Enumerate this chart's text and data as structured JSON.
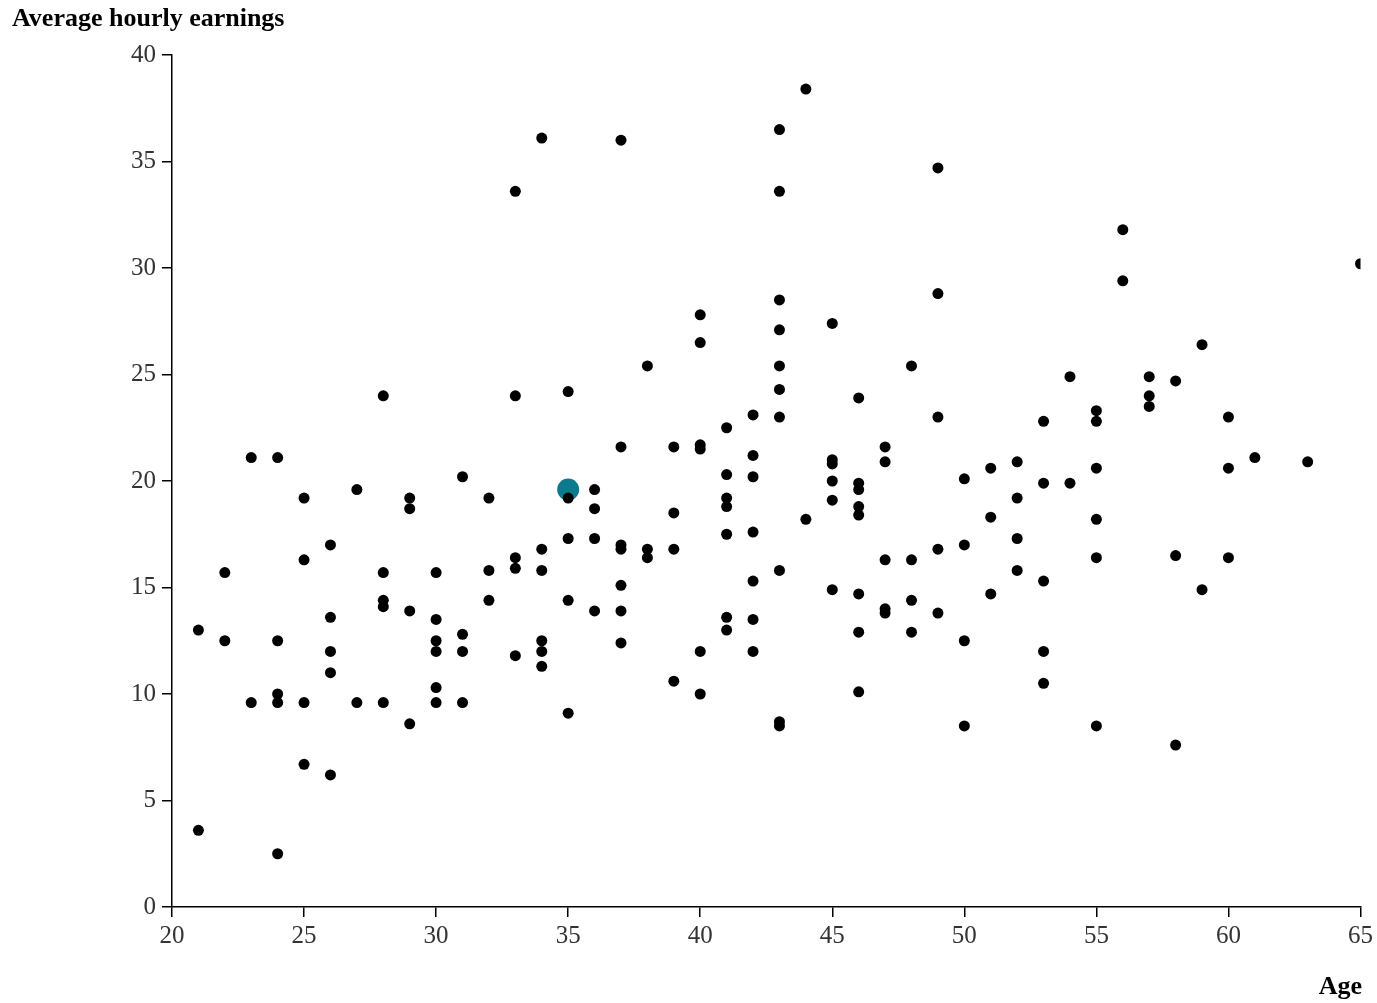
{
  "chart_data": {
    "type": "scatter",
    "ylabel": "Average hourly earnings",
    "xlabel": "Age",
    "xlim": [
      20,
      65
    ],
    "xticks": [
      20,
      25,
      30,
      35,
      40,
      45,
      50,
      55,
      60,
      65
    ],
    "ylim": [
      0,
      40
    ],
    "yticks": [
      0,
      5,
      10,
      15,
      20,
      25,
      30,
      35,
      40
    ],
    "grid": false,
    "legend": false,
    "marker": "circle",
    "series": [
      {
        "color": "#000000",
        "x": [
          21,
          21,
          22,
          22,
          23,
          23,
          24,
          24,
          24,
          24,
          24,
          25,
          25,
          25,
          25,
          26,
          26,
          26,
          26,
          26,
          27,
          27,
          28,
          28,
          28,
          28,
          28,
          29,
          29,
          29,
          29,
          30,
          30,
          30,
          30,
          30,
          30,
          31,
          31,
          31,
          31,
          32,
          32,
          32,
          33,
          33,
          33,
          33,
          33,
          34,
          34,
          34,
          34,
          34,
          34,
          35,
          35,
          35,
          35,
          35,
          36,
          36,
          36,
          36,
          37,
          37,
          37,
          37,
          37,
          37,
          37,
          38,
          38,
          38,
          39,
          39,
          39,
          39,
          40,
          40,
          40,
          40,
          40,
          40,
          41,
          41,
          41,
          41,
          41,
          41,
          41,
          42,
          42,
          42,
          42,
          42,
          42,
          42,
          43,
          43,
          43,
          43,
          43,
          43,
          43,
          43,
          43,
          43,
          44,
          44,
          45,
          45,
          45,
          45,
          45,
          45,
          46,
          46,
          46,
          46,
          46,
          46,
          46,
          46,
          47,
          47,
          47,
          47,
          47,
          48,
          48,
          48,
          48,
          49,
          49,
          49,
          49,
          49,
          50,
          50,
          50,
          50,
          51,
          51,
          51,
          52,
          52,
          52,
          52,
          53,
          53,
          53,
          53,
          53,
          54,
          54,
          55,
          55,
          55,
          55,
          55,
          55,
          56,
          56,
          57,
          57,
          57,
          58,
          58,
          58,
          59,
          59,
          60,
          60,
          60,
          61,
          63,
          65
        ],
        "values": [
          13.0,
          3.6,
          15.7,
          12.5,
          21.1,
          9.6,
          21.1,
          12.5,
          10.0,
          9.6,
          2.5,
          19.2,
          16.3,
          9.6,
          6.7,
          17.0,
          13.6,
          12.0,
          11.0,
          6.2,
          19.6,
          9.6,
          24.0,
          15.7,
          14.4,
          14.1,
          9.6,
          19.2,
          18.7,
          13.9,
          8.6,
          15.7,
          13.5,
          12.5,
          12.0,
          10.3,
          9.6,
          20.2,
          12.8,
          12.0,
          9.6,
          19.2,
          15.8,
          14.4,
          33.6,
          24.0,
          16.4,
          15.9,
          11.8,
          36.1,
          16.8,
          15.8,
          12.5,
          12.0,
          11.3,
          24.2,
          19.2,
          17.3,
          14.4,
          9.1,
          19.6,
          18.7,
          17.3,
          13.9,
          36.0,
          21.6,
          17.0,
          16.8,
          15.1,
          13.9,
          12.4,
          25.4,
          16.8,
          16.4,
          21.6,
          18.5,
          16.8,
          10.6,
          27.8,
          26.5,
          21.7,
          21.5,
          12.0,
          10.0,
          22.5,
          20.3,
          19.2,
          18.8,
          17.5,
          13.6,
          13.0,
          23.1,
          21.2,
          20.2,
          17.6,
          15.3,
          13.5,
          12.0,
          36.5,
          33.6,
          28.5,
          27.1,
          25.4,
          24.3,
          23.0,
          15.8,
          8.7,
          8.5,
          38.4,
          18.2,
          27.4,
          21.0,
          20.8,
          20.0,
          19.1,
          14.9,
          23.9,
          19.9,
          19.6,
          18.8,
          18.4,
          14.7,
          12.9,
          10.1,
          21.6,
          20.9,
          16.3,
          14.0,
          13.8,
          25.4,
          16.3,
          14.4,
          12.9,
          34.7,
          28.8,
          23.0,
          16.8,
          13.8,
          20.1,
          17.0,
          12.5,
          8.5,
          20.6,
          18.3,
          14.7,
          20.9,
          19.2,
          17.3,
          15.8,
          22.8,
          19.9,
          15.3,
          12.0,
          10.5,
          24.9,
          19.9,
          23.3,
          22.8,
          20.6,
          18.2,
          16.4,
          8.5,
          31.8,
          29.4,
          24.9,
          24.0,
          23.5,
          24.7,
          16.5,
          7.6,
          26.4,
          14.9,
          23.0,
          20.6,
          16.4,
          21.1,
          20.9,
          30.2
        ]
      },
      {
        "color": "#0b7a8c",
        "x": [
          35
        ],
        "values": [
          19.6
        ]
      }
    ]
  }
}
